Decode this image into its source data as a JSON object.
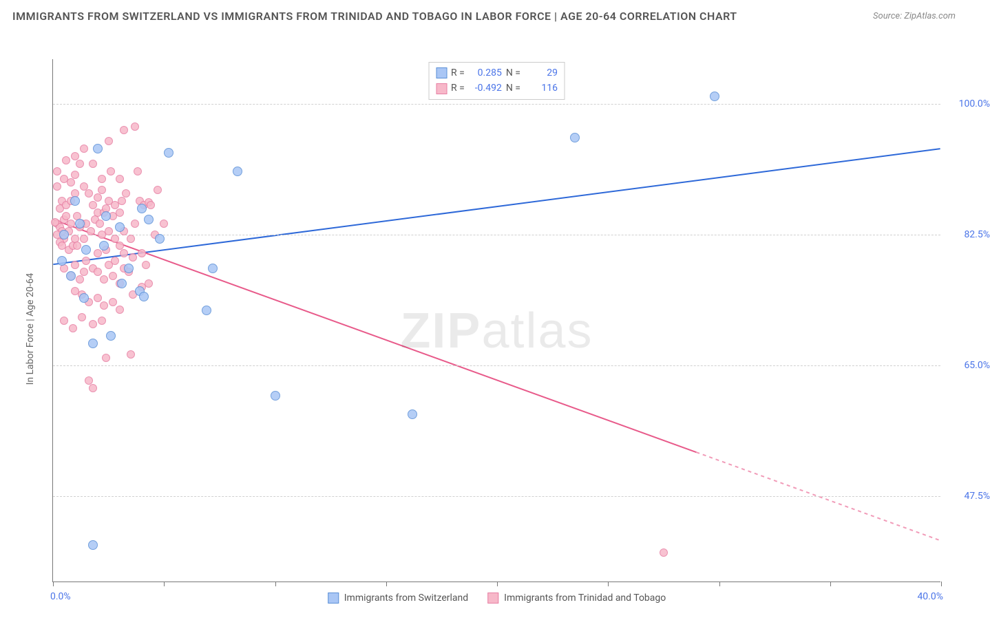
{
  "title": "IMMIGRANTS FROM SWITZERLAND VS IMMIGRANTS FROM TRINIDAD AND TOBAGO IN LABOR FORCE | AGE 20-64 CORRELATION CHART",
  "source_label": "Source: ZipAtlas.com",
  "watermark": {
    "bold": "ZIP",
    "light": "atlas"
  },
  "y_axis_label": "In Labor Force | Age 20-64",
  "chart": {
    "type": "scatter",
    "background_color": "#ffffff",
    "grid_color": "#d0d0d0",
    "axis_color": "#777777",
    "xlim": [
      0,
      40
    ],
    "ylim": [
      36,
      106
    ],
    "x_ticks": [
      0,
      5,
      10,
      15,
      20,
      25,
      30,
      35,
      40
    ],
    "x_tick_labels": {
      "left": "0.0%",
      "right": "40.0%"
    },
    "y_ticks": [
      47.5,
      65.0,
      82.5,
      100.0
    ],
    "y_tick_labels": [
      "47.5%",
      "65.0%",
      "82.5%",
      "100.0%"
    ],
    "title_fontsize": 16,
    "label_fontsize": 14,
    "tick_label_color": "#4a74e8",
    "marker_size_blue": 14,
    "marker_size_pink": 12
  },
  "series": [
    {
      "name": "Immigrants from Switzerland",
      "color_fill": "#a9c6f5",
      "color_stroke": "#5a8fd6",
      "r_label": "R =",
      "r_value": "0.285",
      "n_label": "N =",
      "n_value": "29",
      "trend": {
        "x1": 0,
        "y1": 78.5,
        "x2": 40,
        "y2": 94.0,
        "color": "#2d68d8",
        "width": 2,
        "dash_from_x": null
      },
      "points": [
        [
          1.2,
          84
        ],
        [
          0.5,
          82.5
        ],
        [
          2.0,
          94
        ],
        [
          2.4,
          85
        ],
        [
          4.3,
          84.5
        ],
        [
          4.0,
          86
        ],
        [
          5.2,
          93.5
        ],
        [
          2.6,
          69
        ],
        [
          1.8,
          68
        ],
        [
          1.4,
          74
        ],
        [
          0.4,
          79
        ],
        [
          3.1,
          76
        ],
        [
          3.9,
          75
        ],
        [
          4.1,
          74.2
        ],
        [
          2.3,
          81
        ],
        [
          6.9,
          72.4
        ],
        [
          3.4,
          78
        ],
        [
          7.2,
          78
        ],
        [
          8.3,
          91
        ],
        [
          10.0,
          61
        ],
        [
          16.2,
          58.5
        ],
        [
          23.5,
          95.5
        ],
        [
          29.8,
          101
        ],
        [
          1.8,
          41
        ],
        [
          4.8,
          82
        ],
        [
          3.0,
          83.5
        ],
        [
          1.0,
          87
        ],
        [
          0.8,
          77
        ],
        [
          1.5,
          80.5
        ]
      ]
    },
    {
      "name": "Immigrants from Trinidad and Tobago",
      "color_fill": "#f7b8c9",
      "color_stroke": "#e77fa3",
      "r_label": "R =",
      "r_value": "-0.492",
      "n_label": "N =",
      "n_value": "116",
      "trend": {
        "x1": 0,
        "y1": 84.5,
        "x2": 40,
        "y2": 41.5,
        "color": "#e85a8a",
        "width": 2,
        "dash_from_x": 29
      },
      "points": [
        [
          0.2,
          84
        ],
        [
          0.3,
          83.5
        ],
        [
          0.4,
          83
        ],
        [
          0.5,
          84.5
        ],
        [
          0.5,
          82
        ],
        [
          0.6,
          85
        ],
        [
          0.7,
          83
        ],
        [
          0.8,
          84
        ],
        [
          0.3,
          86
        ],
        [
          0.4,
          87
        ],
        [
          0.6,
          86.5
        ],
        [
          0.8,
          87
        ],
        [
          1.0,
          88
        ],
        [
          1.1,
          85
        ],
        [
          1.2,
          83.5
        ],
        [
          1.3,
          84
        ],
        [
          0.2,
          82.5
        ],
        [
          0.3,
          81.5
        ],
        [
          0.4,
          81
        ],
        [
          0.7,
          80.5
        ],
        [
          0.9,
          81
        ],
        [
          1.0,
          82
        ],
        [
          1.1,
          81
        ],
        [
          1.4,
          82
        ],
        [
          0.2,
          89
        ],
        [
          0.5,
          90
        ],
        [
          0.8,
          89.5
        ],
        [
          1.0,
          90.5
        ],
        [
          1.2,
          92
        ],
        [
          1.4,
          89
        ],
        [
          1.6,
          88
        ],
        [
          1.8,
          86.5
        ],
        [
          1.5,
          84
        ],
        [
          1.7,
          83
        ],
        [
          1.9,
          84.5
        ],
        [
          2.0,
          85.5
        ],
        [
          2.1,
          84
        ],
        [
          2.2,
          82.5
        ],
        [
          2.3,
          85.5
        ],
        [
          2.4,
          86
        ],
        [
          2.0,
          87.5
        ],
        [
          2.2,
          88.5
        ],
        [
          2.5,
          87
        ],
        [
          2.7,
          85
        ],
        [
          2.8,
          86.5
        ],
        [
          3.0,
          85.5
        ],
        [
          3.1,
          87
        ],
        [
          3.3,
          88
        ],
        [
          2.5,
          83
        ],
        [
          2.8,
          82
        ],
        [
          3.0,
          81
        ],
        [
          3.2,
          83
        ],
        [
          3.5,
          82
        ],
        [
          3.7,
          84
        ],
        [
          3.9,
          87
        ],
        [
          4.1,
          86.5
        ],
        [
          4.3,
          86.8
        ],
        [
          1.5,
          79
        ],
        [
          1.8,
          78
        ],
        [
          2.0,
          77.5
        ],
        [
          2.3,
          76.5
        ],
        [
          2.5,
          78.5
        ],
        [
          2.7,
          77
        ],
        [
          3.0,
          76
        ],
        [
          3.2,
          78
        ],
        [
          1.0,
          75
        ],
        [
          1.3,
          74.5
        ],
        [
          1.6,
          73.5
        ],
        [
          2.0,
          74
        ],
        [
          2.3,
          73
        ],
        [
          2.7,
          73.5
        ],
        [
          3.0,
          72.5
        ],
        [
          3.4,
          77.5
        ],
        [
          3.6,
          74.5
        ],
        [
          4.0,
          75.5
        ],
        [
          4.3,
          76
        ],
        [
          4.4,
          86.5
        ],
        [
          4.7,
          88.5
        ],
        [
          3.8,
          91
        ],
        [
          0.5,
          78
        ],
        [
          0.8,
          77
        ],
        [
          1.0,
          78.5
        ],
        [
          1.2,
          76.5
        ],
        [
          1.4,
          77.5
        ],
        [
          0.2,
          91
        ],
        [
          0.6,
          92.5
        ],
        [
          1.0,
          93
        ],
        [
          1.4,
          94
        ],
        [
          1.8,
          92
        ],
        [
          2.2,
          90
        ],
        [
          2.6,
          91
        ],
        [
          3.0,
          90
        ],
        [
          3.2,
          96.5
        ],
        [
          3.7,
          97
        ],
        [
          2.5,
          95
        ],
        [
          2.0,
          80
        ],
        [
          2.4,
          80.5
        ],
        [
          2.8,
          79
        ],
        [
          3.2,
          80
        ],
        [
          3.6,
          79.5
        ],
        [
          4.0,
          80
        ],
        [
          1.6,
          63
        ],
        [
          1.8,
          62
        ],
        [
          2.4,
          66
        ],
        [
          3.5,
          66.5
        ],
        [
          0.5,
          71
        ],
        [
          0.9,
          70
        ],
        [
          1.3,
          71.5
        ],
        [
          1.8,
          70.5
        ],
        [
          2.2,
          71
        ],
        [
          4.6,
          82.5
        ],
        [
          5.0,
          84
        ],
        [
          4.2,
          78.5
        ],
        [
          27.5,
          40
        ],
        [
          0.1,
          84.2
        ]
      ]
    }
  ],
  "bottom_legend": [
    {
      "label": "Immigrants from Switzerland",
      "fill": "#a9c6f5",
      "stroke": "#5a8fd6"
    },
    {
      "label": "Immigrants from Trinidad and Tobago",
      "fill": "#f7b8c9",
      "stroke": "#e77fa3"
    }
  ]
}
